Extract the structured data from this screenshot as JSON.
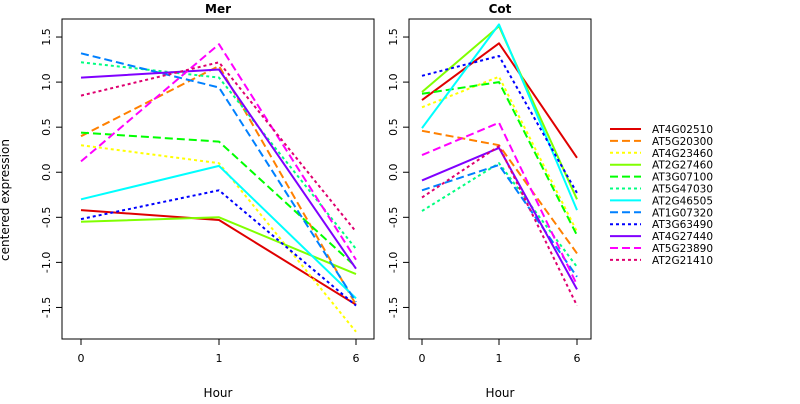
{
  "chart_data": {
    "type": "line",
    "ylabel": "centered expression",
    "legend_placement": "right",
    "panels": [
      {
        "title": "Mer",
        "xlabel": "Hour",
        "x": [
          "0",
          "1",
          "6"
        ],
        "ylim": [
          -1.85,
          1.7
        ],
        "yticks": [
          "-1.5",
          "-1.0",
          "-0.5",
          "0.0",
          "0.5",
          "1.0",
          "1.5"
        ],
        "series": [
          {
            "name": "AT4G02510",
            "values": [
              -0.42,
              -0.53,
              -1.47
            ]
          },
          {
            "name": "AT5G20300",
            "values": [
              0.4,
              1.18,
              -1.47
            ]
          },
          {
            "name": "AT4G23460",
            "values": [
              0.3,
              0.1,
              -1.77
            ]
          },
          {
            "name": "AT2G27460",
            "values": [
              -0.55,
              -0.5,
              -1.13
            ]
          },
          {
            "name": "AT3G07100",
            "values": [
              0.44,
              0.34,
              -1.05
            ]
          },
          {
            "name": "AT5G47030",
            "values": [
              1.22,
              1.05,
              -0.85
            ]
          },
          {
            "name": "AT2G46505",
            "values": [
              -0.3,
              0.07,
              -1.4
            ]
          },
          {
            "name": "AT1G07320",
            "values": [
              1.32,
              0.94,
              -1.44
            ]
          },
          {
            "name": "AT3G63490",
            "values": [
              -0.52,
              -0.2,
              -1.48
            ]
          },
          {
            "name": "AT4G27440",
            "values": [
              1.05,
              1.14,
              -1.07
            ]
          },
          {
            "name": "AT5G23890",
            "values": [
              0.12,
              1.42,
              -0.97
            ]
          },
          {
            "name": "AT2G21410",
            "values": [
              0.85,
              1.22,
              -0.66
            ]
          }
        ]
      },
      {
        "title": "Cot",
        "xlabel": "Hour",
        "x": [
          "0",
          "1",
          "6"
        ],
        "ylim": [
          -1.85,
          1.7
        ],
        "yticks": [
          "-1.5",
          "-1.0",
          "-0.5",
          "0.0",
          "0.5",
          "1.0",
          "1.5"
        ],
        "series": [
          {
            "name": "AT4G02510",
            "values": [
              0.8,
              1.43,
              0.16
            ]
          },
          {
            "name": "AT5G20300",
            "values": [
              0.46,
              0.3,
              -0.9
            ]
          },
          {
            "name": "AT4G23460",
            "values": [
              0.72,
              1.06,
              -0.66
            ]
          },
          {
            "name": "AT2G27460",
            "values": [
              0.89,
              1.62,
              -0.3
            ]
          },
          {
            "name": "AT3G07100",
            "values": [
              0.87,
              1.0,
              -0.7
            ]
          },
          {
            "name": "AT5G47030",
            "values": [
              -0.43,
              0.1,
              -1.05
            ]
          },
          {
            "name": "AT2G46505",
            "values": [
              0.49,
              1.64,
              -0.42
            ]
          },
          {
            "name": "AT1G07320",
            "values": [
              -0.2,
              0.08,
              -1.16
            ]
          },
          {
            "name": "AT3G63490",
            "values": [
              1.07,
              1.29,
              -0.23
            ]
          },
          {
            "name": "AT4G27440",
            "values": [
              -0.09,
              0.27,
              -1.3
            ]
          },
          {
            "name": "AT5G23890",
            "values": [
              0.19,
              0.55,
              -1.25
            ]
          },
          {
            "name": "AT2G21410",
            "values": [
              -0.28,
              0.29,
              -1.48
            ]
          }
        ]
      }
    ],
    "series_styles": [
      {
        "color": "#DF0000",
        "dash": "solid"
      },
      {
        "color": "#FF8000",
        "dash": "dashed"
      },
      {
        "color": "#FFFF00",
        "dash": "dotted"
      },
      {
        "color": "#80FF00",
        "dash": "solid"
      },
      {
        "color": "#00FF00",
        "dash": "dashed"
      },
      {
        "color": "#00FF80",
        "dash": "dotted"
      },
      {
        "color": "#00FFFF",
        "dash": "solid"
      },
      {
        "color": "#0080FF",
        "dash": "dashed"
      },
      {
        "color": "#0000FF",
        "dash": "dotted"
      },
      {
        "color": "#8000FF",
        "dash": "solid"
      },
      {
        "color": "#FF00FF",
        "dash": "dashed"
      },
      {
        "color": "#DF0070",
        "dash": "dotted"
      }
    ]
  }
}
